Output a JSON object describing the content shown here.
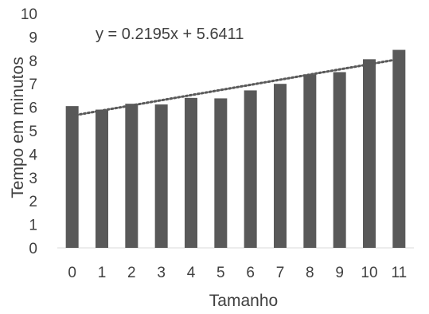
{
  "chart_data": {
    "type": "bar",
    "categories": [
      "0",
      "1",
      "2",
      "3",
      "4",
      "5",
      "6",
      "7",
      "8",
      "9",
      "10",
      "11"
    ],
    "values": [
      6.05,
      5.9,
      6.15,
      6.12,
      6.4,
      6.38,
      6.72,
      7.0,
      7.4,
      7.5,
      8.05,
      8.45
    ],
    "title": "",
    "xlabel": "Tamanho",
    "ylabel": "Tempo em minutos",
    "ylim": [
      0,
      10
    ],
    "yticks": [
      "0",
      "1",
      "2",
      "3",
      "4",
      "5",
      "6",
      "7",
      "8",
      "9",
      "10"
    ],
    "grid": false,
    "legend": "none",
    "bar_color": "#595959",
    "trendline": {
      "type": "linear",
      "slope": 0.2195,
      "intercept": 5.6411,
      "equation_label": "y = 0.2195x + 5.6411",
      "style": "dotted",
      "color": "#595959"
    }
  }
}
